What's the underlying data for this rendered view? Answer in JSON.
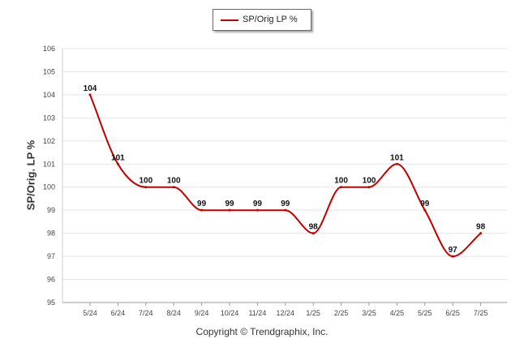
{
  "chart_data": {
    "type": "line",
    "legend": {
      "position": "top-center",
      "entries": [
        "SP/Orig LP %"
      ]
    },
    "categories": [
      "5/24",
      "6/24",
      "7/24",
      "8/24",
      "9/24",
      "10/24",
      "11/24",
      "12/24",
      "1/25",
      "2/25",
      "3/25",
      "4/25",
      "5/25",
      "6/25",
      "7/25"
    ],
    "series": [
      {
        "name": "SP/Orig LP %",
        "color": "#c00000",
        "values": [
          104,
          101,
          100,
          100,
          99,
          99,
          99,
          99,
          98,
          100,
          100,
          101,
          99,
          97,
          98
        ]
      }
    ],
    "ylabel": "SP/Orig. LP %",
    "ylim": [
      95,
      106
    ],
    "yticks": [
      95,
      96,
      97,
      98,
      99,
      100,
      101,
      102,
      103,
      104,
      105,
      106
    ],
    "grid": true
  },
  "footer": "Copyright © Trendgraphix, Inc."
}
